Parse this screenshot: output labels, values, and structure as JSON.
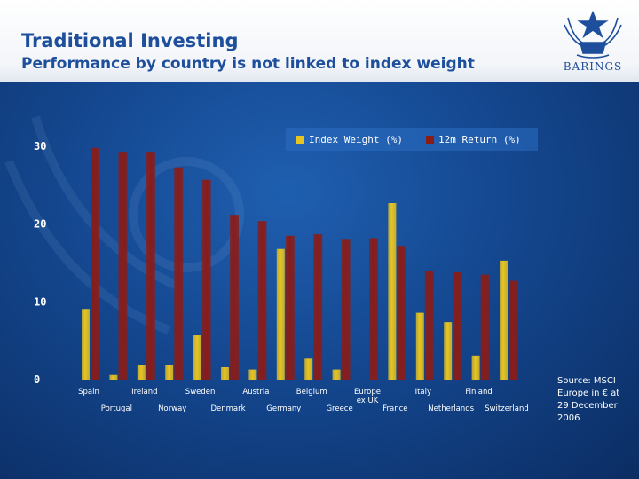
{
  "header": {
    "title": "Traditional Investing",
    "subtitle": "Performance by country is not linked to index weight",
    "logo_text": "BARINGS"
  },
  "source_note": "Source: MSCI Europe in € at 29 December 2006",
  "colors": {
    "index_weight": "#e8c420",
    "return_12m": "#8a1c18",
    "title": "#1d4f9c"
  },
  "chart_data": {
    "type": "bar",
    "title": "",
    "xlabel": "",
    "ylabel": "",
    "ylim": [
      0,
      30
    ],
    "yticks": [
      0,
      10,
      20,
      30
    ],
    "legend_position": "top-right",
    "categories": [
      "Spain",
      "Portugal",
      "Ireland",
      "Norway",
      "Sweden",
      "Denmark",
      "Austria",
      "Germany",
      "Belgium",
      "Greece",
      "Europe ex UK",
      "France",
      "Italy",
      "Netherlands",
      "Finland",
      "Switzerland"
    ],
    "category_labels": [
      [
        "Spain"
      ],
      [
        "Portugal"
      ],
      [
        "Ireland"
      ],
      [
        "Norway"
      ],
      [
        "Sweden"
      ],
      [
        "Denmark"
      ],
      [
        "Austria"
      ],
      [
        "Germany"
      ],
      [
        "Belgium"
      ],
      [
        "Greece"
      ],
      [
        "Europe",
        "ex UK"
      ],
      [
        "France"
      ],
      [
        "Italy"
      ],
      [
        "Netherlands"
      ],
      [
        "Finland"
      ],
      [
        "Switzerland"
      ]
    ],
    "series": [
      {
        "name": "Index Weight (%)",
        "values": [
          9.1,
          0.6,
          1.9,
          1.9,
          5.7,
          1.6,
          1.3,
          16.8,
          2.7,
          1.3,
          0,
          22.7,
          8.6,
          7.4,
          3.1,
          15.3
        ]
      },
      {
        "name": "12m Return (%)",
        "values": [
          29.8,
          29.3,
          29.3,
          27.3,
          25.7,
          21.2,
          20.4,
          18.5,
          18.7,
          18.1,
          18.2,
          17.2,
          14.0,
          13.8,
          13.5,
          12.7
        ]
      }
    ]
  }
}
